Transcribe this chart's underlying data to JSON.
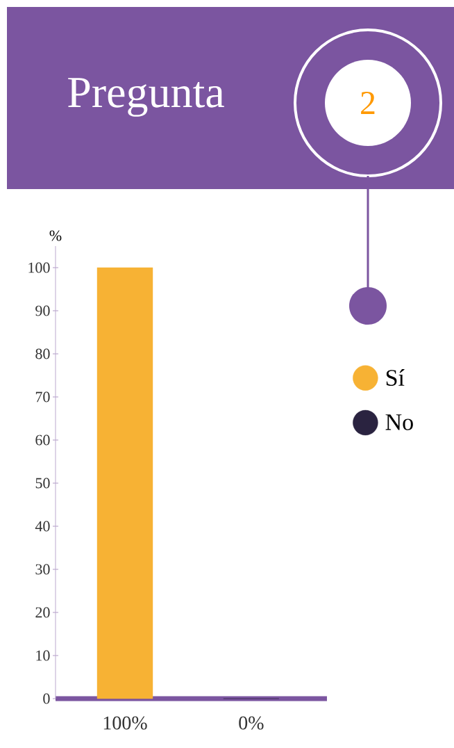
{
  "chart_data": {
    "type": "bar",
    "title": "Pregunta",
    "annotations": [
      "2"
    ],
    "ylabel": "%",
    "categories": [
      null,
      null
    ],
    "series": [
      {
        "name": "Sí",
        "color": "#f7b234",
        "values": [
          100,
          null
        ],
        "value_labels": [
          "100%",
          null
        ]
      },
      {
        "name": "No",
        "color": "#2a2340",
        "values": [
          null,
          0
        ],
        "value_labels": [
          null,
          "0%"
        ]
      }
    ],
    "ylim": [
      0,
      105
    ],
    "yticks": [
      0,
      10,
      20,
      30,
      40,
      50,
      60,
      70,
      80,
      90,
      100
    ],
    "grid": false,
    "legend": "right"
  }
}
